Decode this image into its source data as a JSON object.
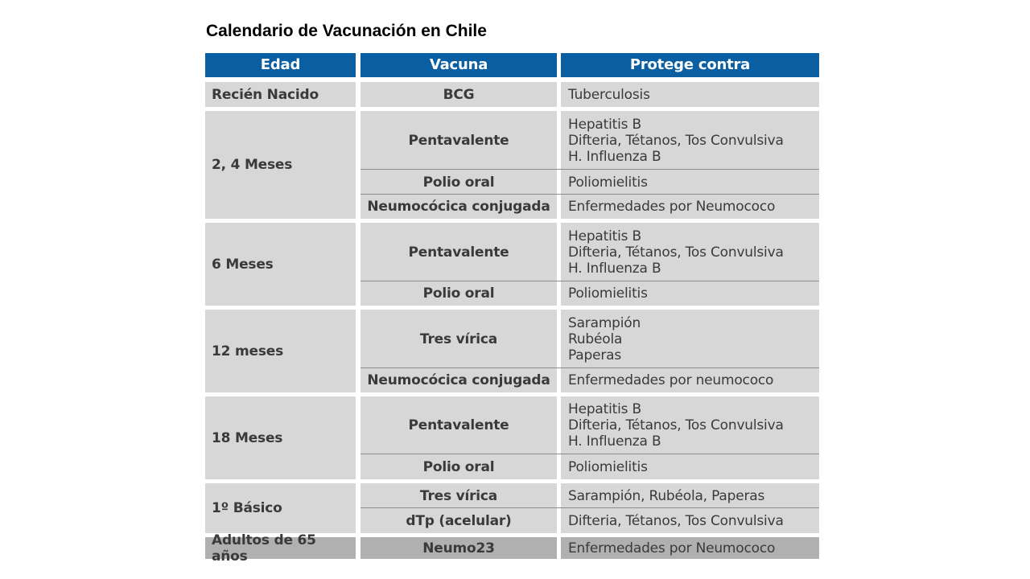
{
  "title": "Calendario de Vacunación en Chile",
  "table": {
    "headers": [
      "Edad",
      "Vacuna",
      "Protege contra"
    ],
    "groups": [
      {
        "age": "Recién Nacido",
        "rows": [
          {
            "vaccine": "BCG",
            "protects": [
              "Tuberculosis"
            ]
          }
        ]
      },
      {
        "age": "2, 4 Meses",
        "rows": [
          {
            "vaccine": "Pentavalente",
            "protects": [
              "Hepatitis B",
              "Difteria, Tétanos, Tos Convulsiva",
              "H. Influenza B"
            ]
          },
          {
            "vaccine": "Polio oral",
            "protects": [
              "Poliomielitis"
            ]
          },
          {
            "vaccine": "Neumocócica conjugada",
            "protects": [
              "Enfermedades por Neumococo"
            ]
          }
        ]
      },
      {
        "age": "6 Meses",
        "rows": [
          {
            "vaccine": "Pentavalente",
            "protects": [
              "Hepatitis B",
              "Difteria, Tétanos, Tos Convulsiva",
              "H. Influenza B"
            ]
          },
          {
            "vaccine": "Polio oral",
            "protects": [
              "Poliomielitis"
            ]
          }
        ]
      },
      {
        "age": "12 meses",
        "rows": [
          {
            "vaccine": "Tres vírica",
            "protects": [
              "Sarampión",
              "Rubéola",
              "Paperas"
            ]
          },
          {
            "vaccine": "Neumocócica conjugada",
            "protects": [
              "Enfermedades por neumococo"
            ]
          }
        ]
      },
      {
        "age": "18 Meses",
        "rows": [
          {
            "vaccine": "Pentavalente",
            "protects": [
              "Hepatitis B",
              "Difteria, Tétanos, Tos Convulsiva",
              "H. Influenza B"
            ]
          },
          {
            "vaccine": "Polio oral",
            "protects": [
              "Poliomielitis"
            ]
          }
        ]
      },
      {
        "age": "1º Básico",
        "rows": [
          {
            "vaccine": "Tres vírica",
            "protects": [
              "Sarampión, Rubéola, Paperas"
            ]
          },
          {
            "vaccine": "dTp (acelular)",
            "protects": [
              "Difteria, Tétanos, Tos Convulsiva"
            ]
          }
        ]
      },
      {
        "age": "Adultos de 65 años",
        "rows": [
          {
            "vaccine": "Neumo23",
            "protects": [
              "Enfermedades por Neumococo"
            ]
          }
        ]
      }
    ]
  },
  "colors": {
    "header_bg": "#0a5fa3",
    "body_bg": "#d7d7d7",
    "last_row_bg": "#b0b0b0",
    "text": "#3a3a3a"
  }
}
